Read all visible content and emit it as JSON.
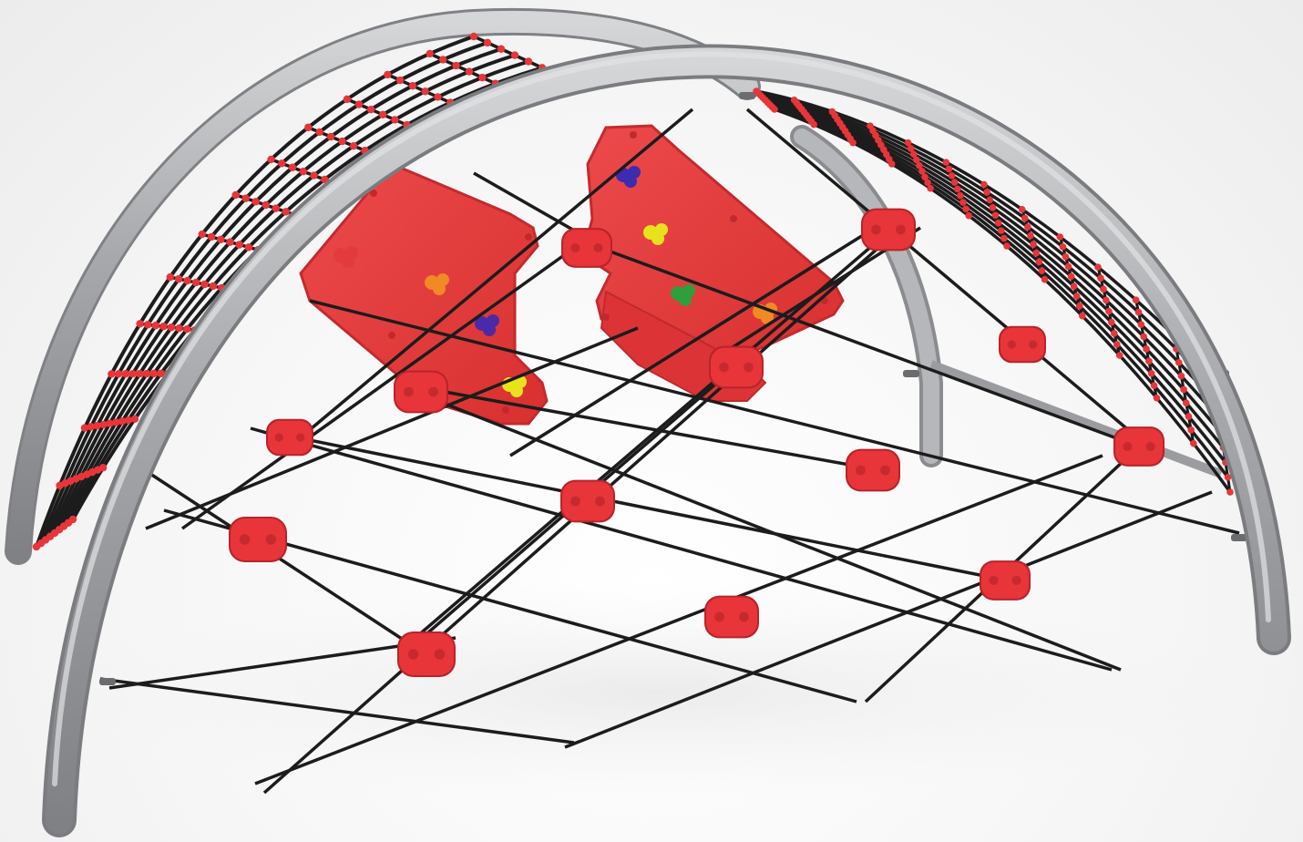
{
  "scene": {
    "subject": "climbing-dome-playground-structure",
    "colors": {
      "background": "#f5f5f5",
      "frame": "#a4a6a9",
      "frame_highlight": "#d2d4d6",
      "frame_shadow": "#7e8083",
      "rope": "#1c1c1c",
      "connector": "#e8353a",
      "connector_dark": "#b8242a",
      "panel": "#e33a3d",
      "panel_edge": "#c42a2e"
    },
    "climbing_holds": [
      {
        "color_name": "red",
        "color": "#e33a3d"
      },
      {
        "color_name": "orange",
        "color": "#f08a24"
      },
      {
        "color_name": "purple",
        "color": "#4b2aa8"
      },
      {
        "color_name": "yellow",
        "color": "#e8e21d"
      },
      {
        "color_name": "blue",
        "color": "#3d2bb0"
      },
      {
        "color_name": "yellow",
        "color": "#e8e21d"
      },
      {
        "color_name": "green",
        "color": "#2f9e3c"
      },
      {
        "color_name": "orange",
        "color": "#f08a24"
      }
    ]
  }
}
